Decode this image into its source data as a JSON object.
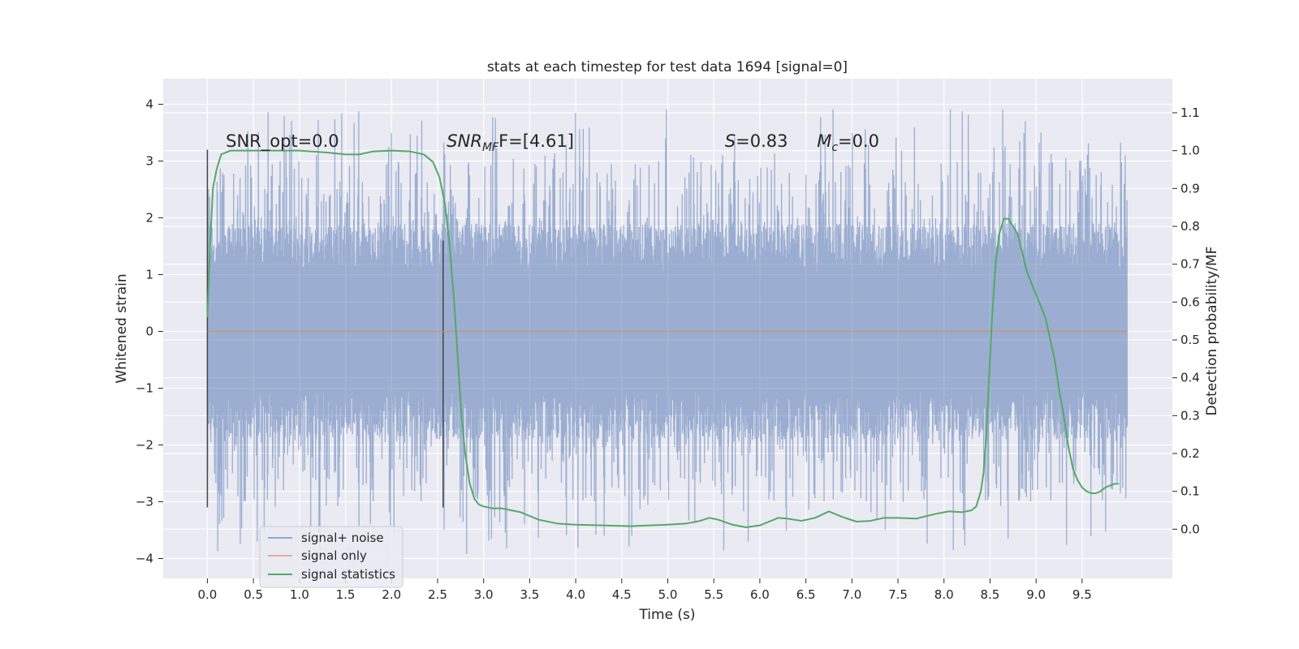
{
  "chart_data": {
    "type": "line",
    "title": "stats at each timestep for test data 1694 [signal=0]",
    "xlabel": "Time (s)",
    "ylabel": "Whitened strain",
    "y2label": "Detection probability/MF",
    "xlim": [
      -0.48,
      10.48
    ],
    "ylim": [
      -4.35,
      4.45
    ],
    "y2lim": [
      -0.13,
      1.19
    ],
    "x_ticks": [
      0.0,
      0.5,
      1.0,
      1.5,
      2.0,
      2.5,
      3.0,
      3.5,
      4.0,
      4.5,
      5.0,
      5.5,
      6.0,
      6.5,
      7.0,
      7.5,
      8.0,
      8.5,
      9.0,
      9.5
    ],
    "x_tick_labels": [
      "0.0",
      "0.5",
      "1.0",
      "1.5",
      "2.0",
      "2.5",
      "3.0",
      "3.5",
      "4.0",
      "4.5",
      "5.0",
      "5.5",
      "6.0",
      "6.5",
      "7.0",
      "7.5",
      "8.0",
      "8.5",
      "9.0",
      "9.5"
    ],
    "y_ticks": [
      -4,
      -3,
      -2,
      -1,
      0,
      1,
      2,
      3,
      4
    ],
    "y_tick_labels": [
      "−4",
      "−3",
      "−2",
      "−1",
      "0",
      "1",
      "2",
      "3",
      "4"
    ],
    "y2_ticks": [
      0.0,
      0.1,
      0.2,
      0.3,
      0.4,
      0.5,
      0.6,
      0.7,
      0.8,
      0.9,
      1.0,
      1.1
    ],
    "y2_tick_labels": [
      "0.0",
      "0.1",
      "0.2",
      "0.3",
      "0.4",
      "0.5",
      "0.6",
      "0.7",
      "0.8",
      "0.9",
      "1.0",
      "1.1"
    ],
    "grid": true,
    "legend_position": "lower-left",
    "series": [
      {
        "name": "signal+ noise",
        "color": "#4c72b0",
        "kind": "noise_trace",
        "x_range": [
          0.0,
          9.99
        ],
        "envelope": {
          "typical_min": -1.9,
          "typical_max": 1.9,
          "extreme_min": -3.9,
          "extreme_max": 4.05
        }
      },
      {
        "name": "signal only",
        "color": "#dd8452",
        "kind": "line",
        "x": [
          0.0,
          9.99
        ],
        "y": [
          0.0,
          0.0
        ]
      },
      {
        "name": "signal statistics",
        "color": "#55a868",
        "kind": "line",
        "axis": "right",
        "x": [
          0.0,
          0.03,
          0.06,
          0.1,
          0.15,
          0.25,
          0.5,
          1.0,
          1.3,
          1.5,
          1.65,
          1.8,
          2.0,
          2.2,
          2.35,
          2.45,
          2.52,
          2.58,
          2.63,
          2.68,
          2.72,
          2.76,
          2.8,
          2.85,
          2.9,
          2.95,
          3.0,
          3.1,
          3.2,
          3.4,
          3.6,
          3.8,
          4.0,
          4.3,
          4.6,
          4.8,
          5.0,
          5.2,
          5.35,
          5.45,
          5.55,
          5.7,
          5.85,
          6.0,
          6.1,
          6.2,
          6.3,
          6.45,
          6.6,
          6.75,
          6.9,
          7.05,
          7.2,
          7.35,
          7.5,
          7.7,
          7.9,
          8.05,
          8.2,
          8.3,
          8.35,
          8.4,
          8.43,
          8.46,
          8.49,
          8.52,
          8.56,
          8.6,
          8.65,
          8.7,
          8.75,
          8.8,
          8.85,
          8.9,
          9.0,
          9.1,
          9.2,
          9.25,
          9.3,
          9.35,
          9.4,
          9.45,
          9.5,
          9.55,
          9.6,
          9.65,
          9.7,
          9.75,
          9.8,
          9.85,
          9.9
        ],
        "y": [
          0.56,
          0.75,
          0.9,
          0.95,
          0.99,
          1.0,
          1.0,
          1.0,
          0.995,
          0.99,
          0.99,
          0.998,
          1.0,
          0.998,
          0.99,
          0.97,
          0.93,
          0.86,
          0.75,
          0.6,
          0.45,
          0.3,
          0.2,
          0.12,
          0.08,
          0.065,
          0.06,
          0.055,
          0.055,
          0.045,
          0.025,
          0.015,
          0.012,
          0.01,
          0.008,
          0.01,
          0.012,
          0.015,
          0.022,
          0.03,
          0.025,
          0.012,
          0.005,
          0.01,
          0.02,
          0.03,
          0.028,
          0.022,
          0.03,
          0.047,
          0.032,
          0.02,
          0.022,
          0.03,
          0.03,
          0.028,
          0.04,
          0.047,
          0.045,
          0.05,
          0.06,
          0.1,
          0.15,
          0.25,
          0.4,
          0.55,
          0.7,
          0.78,
          0.82,
          0.82,
          0.8,
          0.78,
          0.73,
          0.68,
          0.62,
          0.56,
          0.45,
          0.37,
          0.3,
          0.22,
          0.16,
          0.13,
          0.11,
          0.1,
          0.095,
          0.095,
          0.1,
          0.11,
          0.115,
          0.12,
          0.12
        ]
      }
    ],
    "markers": [
      {
        "kind": "vline",
        "x": 0.0,
        "y": [
          -3.1,
          3.2
        ],
        "color": "#444444"
      },
      {
        "kind": "vline",
        "x": 2.56,
        "y": [
          -3.1,
          1.6
        ],
        "color": "#444444"
      }
    ],
    "annotations": {
      "snr_opt": {
        "text": "SNR_opt=0.0",
        "x": 0.2,
        "y": 3.25
      },
      "snr_mf": {
        "prefix": "SNR",
        "sub": "MF",
        "suffix": "F=[4.61]",
        "x": 2.6,
        "y": 3.25
      },
      "s": {
        "prefix": "S",
        "suffix": "=0.83",
        "x": 5.62,
        "y": 3.25
      },
      "mc": {
        "prefix": "M",
        "sub": "c",
        "suffix": "=0.0",
        "x": 6.62,
        "y": 3.25
      }
    }
  }
}
